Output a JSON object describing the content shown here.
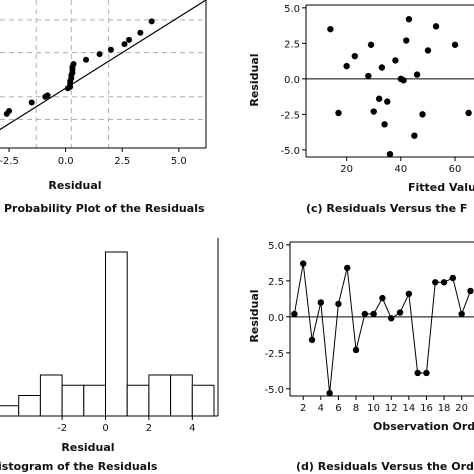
{
  "chart_data": [
    {
      "id": "a",
      "type": "scatter",
      "caption": "Probability Plot of the Residuals",
      "xlabel": "Residual",
      "ylabel": "",
      "x_ticks": [
        "-2.5",
        "0.0",
        "2.5",
        "5.0"
      ],
      "xlim": [
        -2.9,
        6.2
      ],
      "ylim": [
        -2.6,
        2.6
      ],
      "grid": true,
      "fit_line": [
        [
          -3.6,
          -2.3
        ],
        [
          6.2,
          2.6
        ]
      ],
      "points": [
        [
          -3.2,
          -1.9
        ],
        [
          -2.6,
          -1.4
        ],
        [
          -2.5,
          -1.3
        ],
        [
          -1.5,
          -1.0
        ],
        [
          -0.9,
          -0.8
        ],
        [
          -0.8,
          -0.75
        ],
        [
          0.1,
          -0.5
        ],
        [
          0.2,
          -0.45
        ],
        [
          0.2,
          -0.35
        ],
        [
          0.2,
          -0.25
        ],
        [
          0.25,
          -0.15
        ],
        [
          0.25,
          -0.05
        ],
        [
          0.3,
          0.05
        ],
        [
          0.3,
          0.15
        ],
        [
          0.3,
          0.25
        ],
        [
          0.35,
          0.35
        ],
        [
          0.9,
          0.5
        ],
        [
          1.5,
          0.7
        ],
        [
          2.0,
          0.85
        ],
        [
          2.6,
          1.05
        ],
        [
          2.8,
          1.2
        ],
        [
          3.3,
          1.45
        ],
        [
          3.8,
          1.85
        ]
      ]
    },
    {
      "id": "c",
      "type": "scatter",
      "caption": "(c) Residuals Versus the F",
      "xlabel": "Fitted Valu",
      "ylabel": "Residual",
      "x_ticks": [
        "20",
        "40",
        "60"
      ],
      "y_ticks": [
        "5.0",
        "2.5",
        "0.0",
        "-2.5",
        "-5.0"
      ],
      "xlim": [
        5,
        67
      ],
      "ylim": [
        -5.5,
        5.2
      ],
      "zero_line": 0,
      "points": [
        [
          14,
          3.5
        ],
        [
          17,
          -2.4
        ],
        [
          20,
          0.9
        ],
        [
          23,
          1.6
        ],
        [
          28,
          0.2
        ],
        [
          29,
          2.4
        ],
        [
          30,
          -2.3
        ],
        [
          32,
          -1.4
        ],
        [
          33,
          0.8
        ],
        [
          34,
          -3.2
        ],
        [
          35,
          -1.6
        ],
        [
          36,
          -5.3
        ],
        [
          38,
          1.3
        ],
        [
          40,
          0.0
        ],
        [
          41,
          -0.1
        ],
        [
          42,
          2.7
        ],
        [
          43,
          4.2
        ],
        [
          45,
          -4.0
        ],
        [
          46,
          0.3
        ],
        [
          48,
          -2.5
        ],
        [
          50,
          2.0
        ],
        [
          53,
          3.7
        ],
        [
          60,
          2.4
        ],
        [
          65,
          -2.4
        ]
      ]
    },
    {
      "id": "b",
      "type": "bar",
      "caption": "istogram of the Residuals",
      "xlabel": "Residual",
      "x_ticks": [
        "-2",
        "0",
        "2",
        "4"
      ],
      "xlim": [
        -5,
        5
      ],
      "bin_width": 1,
      "bins": [
        {
          "center": -4.5,
          "count": 1
        },
        {
          "center": -3.5,
          "count": 2
        },
        {
          "center": -2.5,
          "count": 4
        },
        {
          "center": -1.5,
          "count": 3
        },
        {
          "center": -0.5,
          "count": 3
        },
        {
          "center": 0.5,
          "count": 16
        },
        {
          "center": 1.5,
          "count": 3
        },
        {
          "center": 2.5,
          "count": 4
        },
        {
          "center": 3.5,
          "count": 4
        },
        {
          "center": 4.5,
          "count": 3
        }
      ]
    },
    {
      "id": "d",
      "type": "line",
      "caption": "(d) Residuals Versus the Ord",
      "xlabel": "Observation Ord",
      "ylabel": "Residual",
      "x_ticks": [
        "2",
        "4",
        "6",
        "8",
        "10",
        "12",
        "14",
        "16",
        "18",
        "20"
      ],
      "y_ticks": [
        "5.0",
        "2.5",
        "0.0",
        "-2.5",
        "-5.0"
      ],
      "xlim": [
        0.5,
        21.4
      ],
      "ylim": [
        -5.5,
        5.2
      ],
      "zero_line": 0,
      "x": [
        1,
        2,
        3,
        4,
        5,
        6,
        7,
        8,
        9,
        10,
        11,
        12,
        13,
        14,
        15,
        16,
        17,
        18,
        19,
        20,
        21
      ],
      "y": [
        0.2,
        3.7,
        -1.6,
        1.0,
        -5.3,
        0.9,
        3.4,
        -2.3,
        0.2,
        0.2,
        1.3,
        -0.1,
        0.3,
        1.6,
        -3.9,
        -3.9,
        2.4,
        2.4,
        2.7,
        0.2,
        1.8
      ]
    }
  ]
}
